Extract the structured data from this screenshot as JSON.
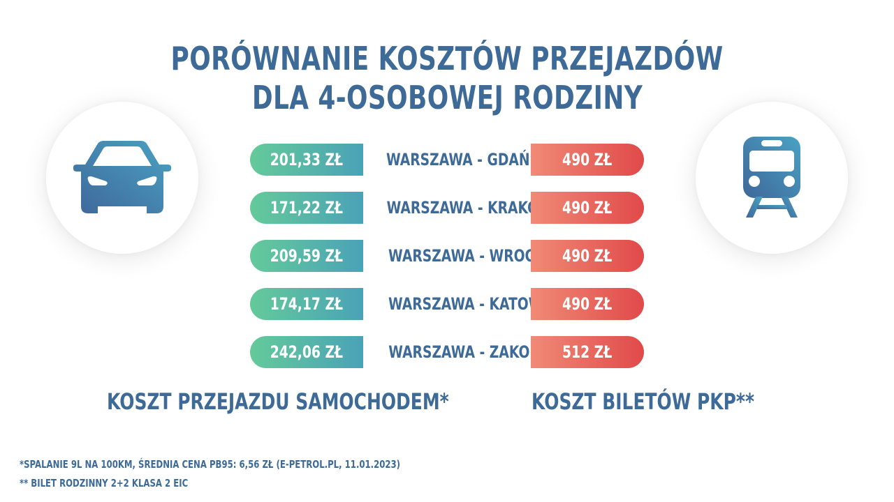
{
  "title": {
    "line1": "PORÓWNANIE KOSZTÓW PRZEJAZDÓW",
    "line2": "DLA 4-OSOBOWEJ RODZINY"
  },
  "icons": {
    "left": "car-icon",
    "right": "train-icon"
  },
  "colors": {
    "text": "#3d6a97",
    "car_gradient": [
      "#64ca9a",
      "#4aa2b7"
    ],
    "pkp_gradient": [
      "#f08a76",
      "#e04a4a"
    ],
    "icon_gradient": [
      "#3f679a",
      "#4aa2c3"
    ]
  },
  "chart_data": {
    "type": "table",
    "columns": [
      "KOSZT PRZEJAZDU SAMOCHODEM*",
      "",
      "KOSZT BILETÓW PKP**"
    ],
    "rows": [
      {
        "route": "WARSZAWA - GDAŃSK",
        "car": "201,33 ZŁ",
        "pkp": "490 ZŁ",
        "car_value": 201.33,
        "pkp_value": 490
      },
      {
        "route": "WARSZAWA - KRAKÓW",
        "car": "171,22 ZŁ",
        "pkp": "490 ZŁ",
        "car_value": 171.22,
        "pkp_value": 490
      },
      {
        "route": "WARSZAWA - WROCŁAW",
        "car": "209,59 ZŁ",
        "pkp": "490 ZŁ",
        "car_value": 209.59,
        "pkp_value": 490
      },
      {
        "route": "WARSZAWA - KATOWICE",
        "car": "174,17 ZŁ",
        "pkp": "490 ZŁ",
        "car_value": 174.17,
        "pkp_value": 490
      },
      {
        "route": "WARSZAWA - ZAKOPANE",
        "car": "242,06 ZŁ",
        "pkp": "512 ZŁ",
        "car_value": 242.06,
        "pkp_value": 512
      }
    ]
  },
  "labels": {
    "car": "KOSZT PRZEJAZDU SAMOCHODEM*",
    "pkp": "KOSZT BILETÓW PKP**"
  },
  "footnotes": {
    "note1": "*SPALANIE 9L NA 100KM, ŚREDNIA CENA PB95: 6,56 ZŁ (E-PETROL.PL, 11.01.2023)",
    "note2": "** BILET RODZINNY 2+2  KLASA 2 EIC"
  }
}
